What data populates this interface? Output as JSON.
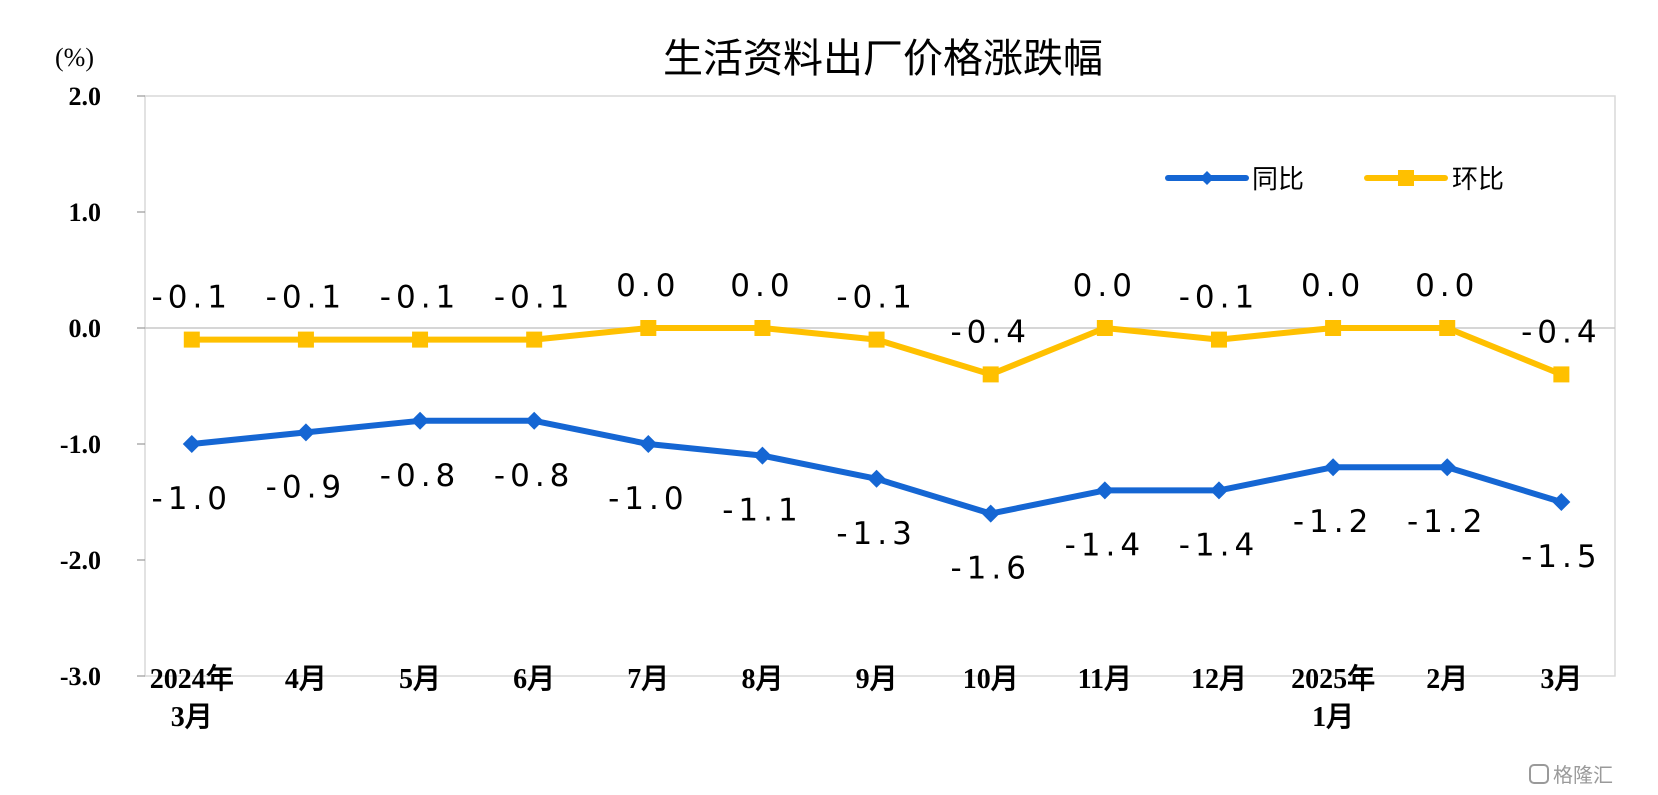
{
  "chart_data": {
    "type": "line",
    "title": "生活资料出厂价格涨跌幅",
    "unit_label": "(%)",
    "categories": [
      [
        "2024年",
        "3月"
      ],
      [
        "4月"
      ],
      [
        "5月"
      ],
      [
        "6月"
      ],
      [
        "7月"
      ],
      [
        "8月"
      ],
      [
        "9月"
      ],
      [
        "10月"
      ],
      [
        "11月"
      ],
      [
        "12月"
      ],
      [
        "2025年",
        "1月"
      ],
      [
        "2月"
      ],
      [
        "3月"
      ]
    ],
    "ylim": [
      -3.0,
      2.0
    ],
    "yticks": [
      "2.0",
      "1.0",
      "0.0",
      "-1.0",
      "-2.0",
      "-3.0"
    ],
    "ytick_values": [
      2.0,
      1.0,
      0.0,
      -1.0,
      -2.0,
      -3.0
    ],
    "grid": false,
    "legend_position": "top-right",
    "series": [
      {
        "name": "同比",
        "color": "#1566D3",
        "marker": "diamond",
        "values": [
          -1.0,
          -0.9,
          -0.8,
          -0.8,
          -1.0,
          -1.1,
          -1.3,
          -1.6,
          -1.4,
          -1.4,
          -1.2,
          -1.2,
          -1.5
        ],
        "labels": [
          "-1.0",
          "-0.9",
          "-0.8",
          "-0.8",
          "-1.0",
          "-1.1",
          "-1.3",
          "-1.6",
          "-1.4",
          "-1.4",
          "-1.2",
          "-1.2",
          "-1.5"
        ],
        "label_position": "below"
      },
      {
        "name": "环比",
        "color": "#FFC000",
        "marker": "square",
        "values": [
          -0.1,
          -0.1,
          -0.1,
          -0.1,
          0.0,
          0.0,
          -0.1,
          -0.4,
          0.0,
          -0.1,
          0.0,
          0.0,
          -0.4
        ],
        "labels": [
          "-0.1",
          "-0.1",
          "-0.1",
          "-0.1",
          "0.0",
          "0.0",
          "-0.1",
          "-0.4",
          "0.0",
          "-0.1",
          "0.0",
          "0.0",
          "-0.4"
        ],
        "label_position": "above"
      }
    ]
  },
  "watermark": "格隆汇"
}
